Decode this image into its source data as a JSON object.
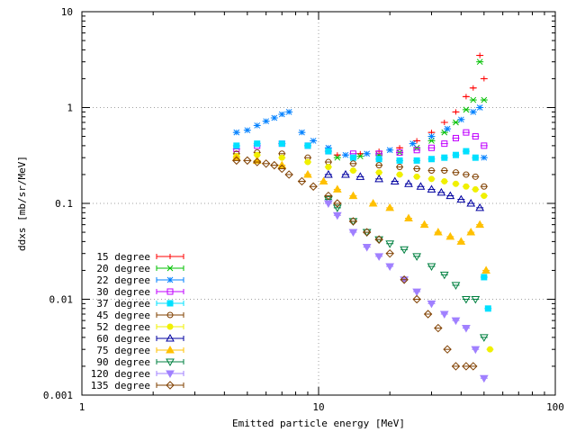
{
  "chart_data": {
    "type": "scatter",
    "title": "",
    "xlabel": "Emitted particle energy [MeV]",
    "ylabel": "ddxs [mb/sr/MeV]",
    "x_scale": "log",
    "y_scale": "log",
    "xlim": [
      1,
      100
    ],
    "ylim": [
      0.001,
      10
    ],
    "x_ticks": [
      {
        "v": 1,
        "label": "1"
      },
      {
        "v": 10,
        "label": "10"
      },
      {
        "v": 100,
        "label": "100"
      }
    ],
    "y_ticks": [
      {
        "v": 0.001,
        "label": "0.001"
      },
      {
        "v": 0.01,
        "label": "0.01"
      },
      {
        "v": 0.1,
        "label": "0.1"
      },
      {
        "v": 1,
        "label": "1"
      },
      {
        "v": 10,
        "label": "10"
      }
    ],
    "grid": true,
    "legend_position": "bottom-left",
    "series": [
      {
        "name": "15 degree",
        "color": "#ff0000",
        "marker": "plus",
        "x": [
          12,
          15,
          18,
          22,
          26,
          30,
          34,
          38,
          42,
          45,
          48,
          50
        ],
        "y": [
          0.32,
          0.33,
          0.35,
          0.38,
          0.45,
          0.55,
          0.7,
          0.9,
          1.3,
          1.6,
          3.5,
          2.0
        ]
      },
      {
        "name": "20 degree",
        "color": "#00c000",
        "marker": "x",
        "x": [
          12,
          15,
          18,
          22,
          26,
          30,
          34,
          38,
          42,
          45,
          48,
          50
        ],
        "y": [
          0.3,
          0.31,
          0.32,
          0.34,
          0.38,
          0.45,
          0.55,
          0.7,
          0.95,
          1.2,
          3.0,
          1.2
        ]
      },
      {
        "name": "22 degree",
        "color": "#0080ff",
        "marker": "star",
        "x": [
          4.5,
          5,
          5.5,
          6,
          6.5,
          7,
          7.5,
          8.5,
          9.5,
          11,
          13,
          16,
          20,
          25,
          30,
          35,
          40,
          45,
          48,
          50
        ],
        "y": [
          0.55,
          0.58,
          0.65,
          0.72,
          0.78,
          0.85,
          0.9,
          0.55,
          0.45,
          0.38,
          0.32,
          0.33,
          0.36,
          0.42,
          0.5,
          0.6,
          0.75,
          0.9,
          1.0,
          0.3
        ]
      },
      {
        "name": "30 degree",
        "color": "#c000ff",
        "marker": "square",
        "x": [
          4.5,
          5.5,
          7,
          9,
          11,
          14,
          18,
          22,
          26,
          30,
          34,
          38,
          42,
          46,
          50
        ],
        "y": [
          0.37,
          0.4,
          0.42,
          0.4,
          0.35,
          0.33,
          0.33,
          0.34,
          0.36,
          0.38,
          0.42,
          0.48,
          0.55,
          0.5,
          0.4
        ]
      },
      {
        "name": "37 degree",
        "color": "#00e0ff",
        "marker": "fsquare",
        "x": [
          4.5,
          5.5,
          7,
          9,
          11,
          14,
          18,
          22,
          26,
          30,
          34,
          38,
          42,
          46,
          50,
          52
        ],
        "y": [
          0.4,
          0.42,
          0.42,
          0.4,
          0.35,
          0.3,
          0.29,
          0.28,
          0.28,
          0.29,
          0.3,
          0.32,
          0.35,
          0.3,
          0.017,
          0.008
        ]
      },
      {
        "name": "45 degree",
        "color": "#804000",
        "marker": "circle",
        "x": [
          4.5,
          5.5,
          7,
          9,
          11,
          14,
          18,
          22,
          26,
          30,
          34,
          38,
          42,
          46,
          50
        ],
        "y": [
          0.33,
          0.34,
          0.33,
          0.3,
          0.27,
          0.26,
          0.25,
          0.24,
          0.23,
          0.22,
          0.22,
          0.21,
          0.2,
          0.19,
          0.15
        ]
      },
      {
        "name": "52 degree",
        "color": "#f0f000",
        "marker": "fcircle",
        "x": [
          4.5,
          5.5,
          7,
          9,
          11,
          14,
          18,
          22,
          26,
          30,
          34,
          38,
          42,
          46,
          50,
          53
        ],
        "y": [
          0.31,
          0.32,
          0.3,
          0.27,
          0.24,
          0.22,
          0.21,
          0.2,
          0.19,
          0.18,
          0.17,
          0.16,
          0.15,
          0.14,
          0.12,
          0.003
        ]
      },
      {
        "name": "60 degree",
        "color": "#0000a0",
        "marker": "triangle",
        "x": [
          11,
          13,
          15,
          18,
          21,
          24,
          27,
          30,
          33,
          36,
          40,
          44,
          48
        ],
        "y": [
          0.2,
          0.2,
          0.19,
          0.18,
          0.17,
          0.16,
          0.15,
          0.14,
          0.13,
          0.12,
          0.11,
          0.1,
          0.09
        ]
      },
      {
        "name": "75 degree",
        "color": "#ffc000",
        "marker": "ftriangle",
        "x": [
          4.5,
          5.5,
          7,
          9,
          10.5,
          12,
          14,
          17,
          20,
          24,
          28,
          32,
          36,
          40,
          44,
          48,
          51
        ],
        "y": [
          0.3,
          0.28,
          0.25,
          0.2,
          0.17,
          0.14,
          0.12,
          0.1,
          0.09,
          0.07,
          0.06,
          0.05,
          0.045,
          0.04,
          0.05,
          0.06,
          0.02
        ]
      },
      {
        "name": "90 degree",
        "color": "#008040",
        "marker": "dtriangle",
        "x": [
          11,
          12,
          14,
          16,
          18,
          20,
          23,
          26,
          30,
          34,
          38,
          42,
          46,
          50
        ],
        "y": [
          0.11,
          0.09,
          0.065,
          0.05,
          0.042,
          0.038,
          0.033,
          0.028,
          0.022,
          0.018,
          0.014,
          0.01,
          0.01,
          0.004
        ]
      },
      {
        "name": "120 degree",
        "color": "#a080ff",
        "marker": "fdtriangle",
        "x": [
          11,
          12,
          14,
          16,
          18,
          20,
          23,
          26,
          30,
          34,
          38,
          42,
          46,
          50
        ],
        "y": [
          0.1,
          0.075,
          0.05,
          0.035,
          0.028,
          0.022,
          0.016,
          0.012,
          0.009,
          0.007,
          0.006,
          0.005,
          0.003,
          0.0015
        ]
      },
      {
        "name": "135 degree",
        "color": "#804000",
        "marker": "diamond",
        "x": [
          4.5,
          5,
          5.5,
          6,
          6.5,
          7,
          7.5,
          8.5,
          9.5,
          11,
          12,
          14,
          16,
          18,
          20,
          23,
          26,
          29,
          32,
          35,
          38,
          42,
          45
        ],
        "y": [
          0.28,
          0.28,
          0.27,
          0.26,
          0.25,
          0.23,
          0.2,
          0.17,
          0.15,
          0.12,
          0.1,
          0.065,
          0.05,
          0.042,
          0.03,
          0.016,
          0.01,
          0.007,
          0.005,
          0.003,
          0.002,
          0.002,
          0.002
        ]
      }
    ]
  }
}
